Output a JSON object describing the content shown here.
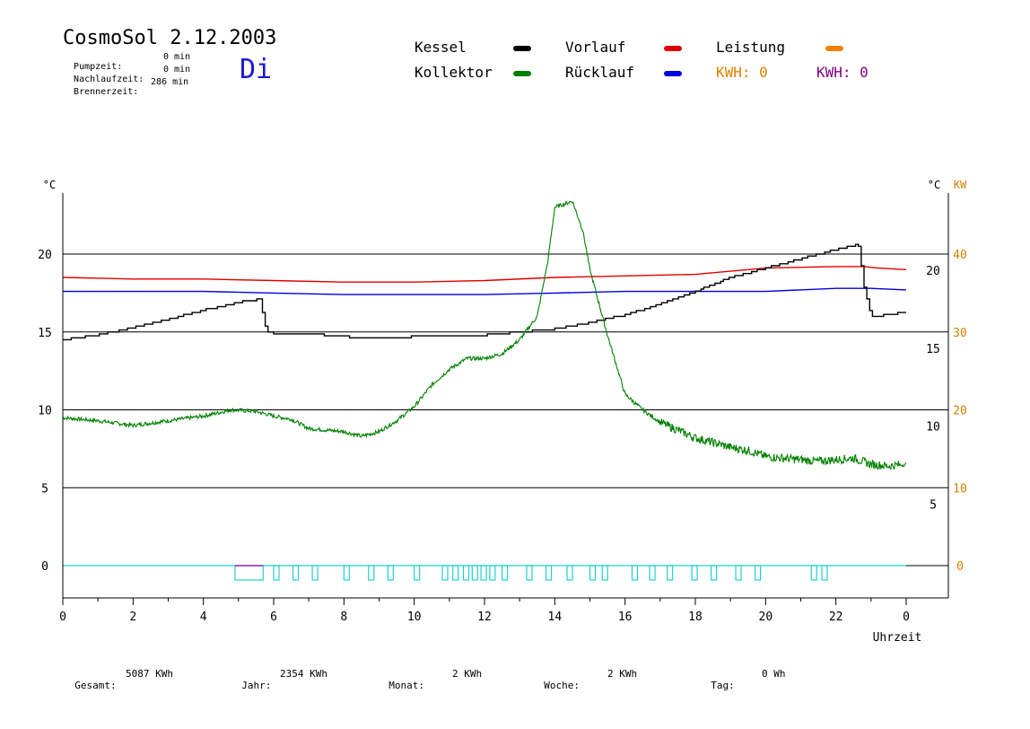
{
  "header": {
    "title": "CosmoSol 2.12.2003",
    "day": "Di",
    "stats": [
      {
        "label": "Pumpzeit:",
        "value": "0 min"
      },
      {
        "label": "Nachlaufzeit:",
        "value": "0 min"
      },
      {
        "label": "Brennerzeit:",
        "value": "286 min"
      }
    ]
  },
  "legend": {
    "kessel": {
      "label": "Kessel",
      "color": "#000000"
    },
    "vorlauf": {
      "label": "Vorlauf",
      "color": "#e00000"
    },
    "leistung": {
      "label": "Leistung",
      "color": "#f08000"
    },
    "kollektor": {
      "label": "Kollektor",
      "color": "#008000"
    },
    "ruecklauf": {
      "label": "Rücklauf",
      "color": "#0000e0"
    },
    "kwh1": {
      "label": "KWH: 0",
      "color": "#e08000"
    },
    "kwh2": {
      "label": "KWH: 0",
      "color": "#800080"
    }
  },
  "footer": [
    {
      "label": "Gesamt:",
      "value": "5087 KWh"
    },
    {
      "label": "Jahr:",
      "value": "2354 KWh"
    },
    {
      "label": "Monat:",
      "value": "2 KWh"
    },
    {
      "label": "Woche:",
      "value": "2 KWh"
    },
    {
      "label": "Tag:",
      "value": "0 Wh"
    }
  ],
  "chart_data": {
    "type": "line",
    "xlabel": "Uhrzeit",
    "ylabel_left": "°C",
    "ylabel_right": "°C",
    "ylabel_right2": "KW",
    "x_ticks": [
      "0",
      "2",
      "4",
      "6",
      "8",
      "10",
      "12",
      "14",
      "16",
      "18",
      "20",
      "22",
      "0"
    ],
    "y_left_ticks": [
      "0",
      "5",
      "10",
      "15",
      "20"
    ],
    "y_right_ticks": [
      "5",
      "10",
      "15",
      "20"
    ],
    "kw_ticks": [
      "0",
      "10",
      "20",
      "30",
      "40"
    ],
    "xlim": [
      0,
      24
    ],
    "ylim": [
      -2,
      24.5
    ],
    "grid": "horizontal lines at 0, 5, 10, 15, 20",
    "series": [
      {
        "name": "Vorlauf",
        "color": "#e00000",
        "x": [
          0,
          2,
          4,
          6,
          8,
          10,
          12,
          14,
          16,
          18,
          19,
          20,
          22,
          22.8,
          23.2,
          24
        ],
        "y": [
          18.5,
          18.4,
          18.4,
          18.3,
          18.2,
          18.2,
          18.3,
          18.5,
          18.6,
          18.7,
          18.9,
          19.1,
          19.2,
          19.2,
          19.1,
          19.0
        ]
      },
      {
        "name": "Rücklauf",
        "color": "#0000e0",
        "x": [
          0,
          2,
          4,
          6,
          8,
          10,
          12,
          14,
          16,
          18,
          20,
          22,
          23,
          24
        ],
        "y": [
          17.6,
          17.6,
          17.6,
          17.5,
          17.4,
          17.4,
          17.4,
          17.5,
          17.6,
          17.6,
          17.6,
          17.8,
          17.8,
          17.7
        ]
      },
      {
        "name": "Kessel",
        "color": "#000000",
        "x": [
          0,
          1,
          2,
          3,
          4,
          5,
          5.55,
          5.6,
          5.8,
          6,
          7,
          8,
          9,
          10,
          11,
          12,
          13,
          14,
          15,
          16,
          17,
          18,
          19,
          20,
          21,
          22,
          22.6,
          22.65,
          22.8,
          23,
          23.5,
          24
        ],
        "y": [
          14.5,
          14.8,
          15.3,
          15.8,
          16.4,
          16.9,
          17.1,
          17.1,
          15.0,
          14.9,
          14.9,
          14.7,
          14.6,
          14.7,
          14.7,
          14.8,
          15.0,
          15.2,
          15.6,
          16.1,
          16.8,
          17.6,
          18.5,
          19.1,
          19.7,
          20.3,
          20.6,
          20.4,
          17.9,
          16.0,
          16.1,
          16.3
        ]
      },
      {
        "name": "Kollektor",
        "color": "#008000",
        "x": [
          0,
          1,
          2,
          3,
          4,
          4.8,
          5.5,
          6,
          6.5,
          7,
          8,
          8.5,
          9,
          9.5,
          10,
          10.5,
          11,
          11.5,
          12,
          12.5,
          13,
          13.5,
          13.8,
          14,
          14.5,
          14.8,
          15,
          15.5,
          16,
          16.5,
          17,
          17.5,
          18,
          19,
          19.5,
          20,
          20.5,
          21,
          21.5,
          22,
          22.5,
          23,
          23.5,
          24
        ],
        "y": [
          9.5,
          9.3,
          9.0,
          9.3,
          9.6,
          10.0,
          9.9,
          9.6,
          9.4,
          8.8,
          8.6,
          8.3,
          8.6,
          9.3,
          10.2,
          11.6,
          12.6,
          13.3,
          13.3,
          13.6,
          14.5,
          16.0,
          19.5,
          23.0,
          23.4,
          21.5,
          19.0,
          14.8,
          11.0,
          10.0,
          9.2,
          8.7,
          8.2,
          7.6,
          7.4,
          7.0,
          6.9,
          6.8,
          6.7,
          6.8,
          6.9,
          6.5,
          6.4,
          6.5
        ]
      },
      {
        "name": "Leistung",
        "color": "#20d0d0",
        "x": [
          0,
          24
        ],
        "y": [
          0,
          0
        ]
      }
    ]
  }
}
